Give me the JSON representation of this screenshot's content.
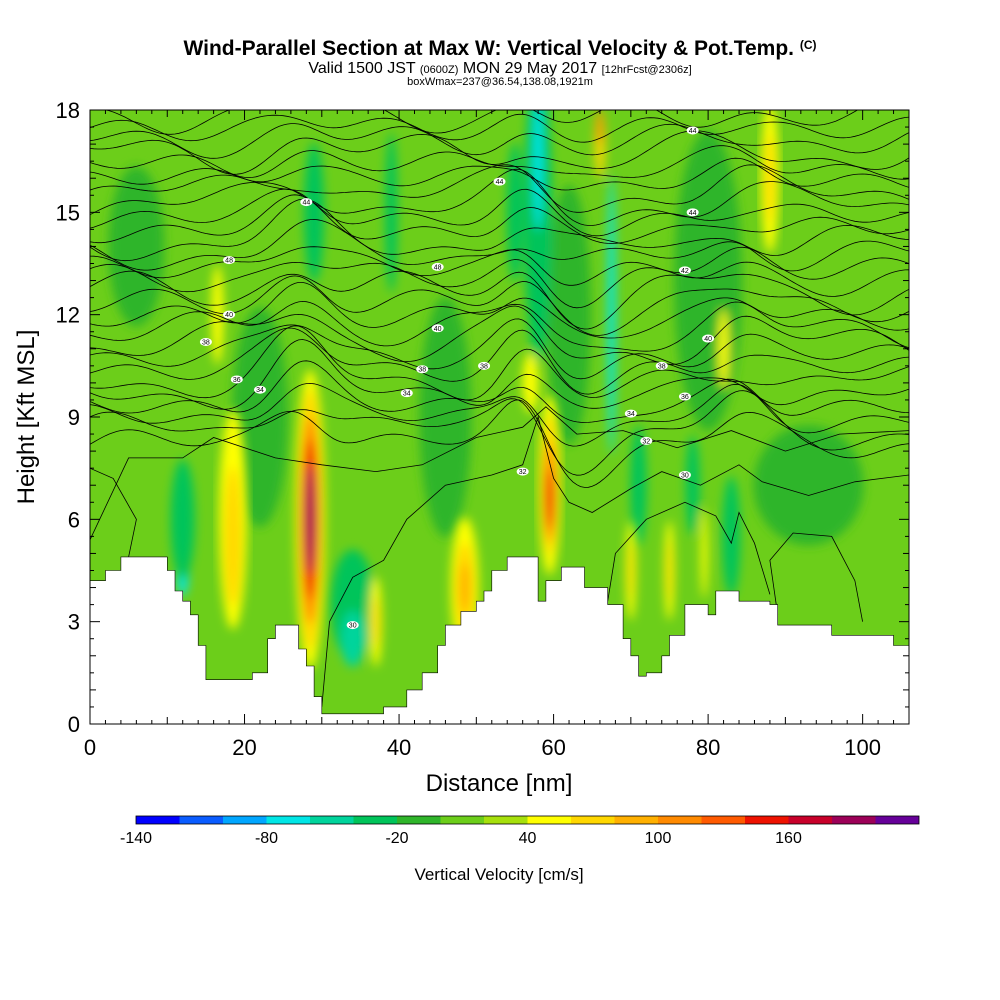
{
  "header": {
    "title_main": "Wind-Parallel Section at Max W: Vertical Velocity & Pot.Temp.",
    "title_mark": "(C)",
    "valid_a": "Valid 1500 JST",
    "valid_utc": "(0600Z)",
    "valid_b": "MON 29 May 2017",
    "forecast": "[12hrFcst@2306z]",
    "box_info": "boxWmax=237@36.54,138.08,1921m"
  },
  "chart_data": {
    "type": "heatmap",
    "xlabel": "Distance [nm]",
    "ylabel": "Height [Kft MSL]",
    "xlim": [
      0,
      106
    ],
    "ylim": [
      0,
      18
    ],
    "x_ticks": [
      0,
      20,
      40,
      60,
      80,
      100
    ],
    "y_ticks": [
      0,
      3,
      6,
      9,
      12,
      15,
      18
    ],
    "colorbar": {
      "label": "Vertical Velocity [cm/s]",
      "levels": [
        -140,
        -120,
        -100,
        -80,
        -60,
        -40,
        -20,
        0,
        20,
        40,
        60,
        80,
        100,
        120,
        140,
        160,
        180,
        200
      ],
      "tick_labels": [
        -140,
        -80,
        -20,
        40,
        100,
        160
      ],
      "colors": [
        "#0000ff",
        "#0a5cff",
        "#00a6ff",
        "#00e6e6",
        "#00d49c",
        "#00c45a",
        "#2fb52a",
        "#6cce1a",
        "#a6e00c",
        "#ffff00",
        "#ffd700",
        "#ffb000",
        "#ff8a00",
        "#ff5a00",
        "#ee1200",
        "#c8002a",
        "#9c0058",
        "#660099"
      ]
    },
    "terrain_kft": [
      [
        0,
        4.2
      ],
      [
        2,
        4.2
      ],
      [
        2,
        4.5
      ],
      [
        4,
        4.5
      ],
      [
        4,
        4.9
      ],
      [
        10,
        4.9
      ],
      [
        10,
        4.5
      ],
      [
        11,
        4.5
      ],
      [
        11,
        3.9
      ],
      [
        12,
        3.9
      ],
      [
        12,
        3.6
      ],
      [
        13,
        3.6
      ],
      [
        13,
        3.2
      ],
      [
        14,
        3.2
      ],
      [
        14,
        2.3
      ],
      [
        15,
        2.3
      ],
      [
        15,
        1.3
      ],
      [
        21,
        1.3
      ],
      [
        21,
        1.5
      ],
      [
        23,
        1.5
      ],
      [
        23,
        2.5
      ],
      [
        24,
        2.5
      ],
      [
        24,
        2.9
      ],
      [
        27,
        2.9
      ],
      [
        27,
        2.2
      ],
      [
        28,
        2.2
      ],
      [
        28,
        1.7
      ],
      [
        29,
        1.7
      ],
      [
        29,
        0.8
      ],
      [
        30,
        0.8
      ],
      [
        30,
        0.3
      ],
      [
        38,
        0.3
      ],
      [
        38,
        0.5
      ],
      [
        41,
        0.5
      ],
      [
        41,
        1.0
      ],
      [
        43,
        1.0
      ],
      [
        43,
        1.5
      ],
      [
        45,
        1.5
      ],
      [
        45,
        2.3
      ],
      [
        46,
        2.3
      ],
      [
        46,
        2.9
      ],
      [
        48,
        2.9
      ],
      [
        48,
        3.3
      ],
      [
        50,
        3.3
      ],
      [
        50,
        3.6
      ],
      [
        51,
        3.6
      ],
      [
        51,
        3.9
      ],
      [
        52,
        3.9
      ],
      [
        52,
        4.5
      ],
      [
        54,
        4.5
      ],
      [
        54,
        4.9
      ],
      [
        58,
        4.9
      ],
      [
        58,
        3.6
      ],
      [
        59,
        3.6
      ],
      [
        59,
        4.2
      ],
      [
        61,
        4.2
      ],
      [
        61,
        4.6
      ],
      [
        64,
        4.6
      ],
      [
        64,
        4.0
      ],
      [
        67,
        4.0
      ],
      [
        67,
        3.5
      ],
      [
        69,
        3.5
      ],
      [
        69,
        2.5
      ],
      [
        70,
        2.5
      ],
      [
        70,
        2.0
      ],
      [
        71,
        2.0
      ],
      [
        71,
        1.4
      ],
      [
        72,
        1.4
      ],
      [
        72,
        1.5
      ],
      [
        74,
        1.5
      ],
      [
        74,
        2.0
      ],
      [
        75,
        2.0
      ],
      [
        75,
        2.6
      ],
      [
        77,
        2.6
      ],
      [
        77,
        3.5
      ],
      [
        80,
        3.5
      ],
      [
        80,
        3.2
      ],
      [
        81,
        3.2
      ],
      [
        81,
        3.9
      ],
      [
        84,
        3.9
      ],
      [
        84,
        3.6
      ],
      [
        88,
        3.6
      ],
      [
        88,
        3.5
      ],
      [
        89,
        3.5
      ],
      [
        89,
        2.9
      ],
      [
        96,
        2.9
      ],
      [
        96,
        2.6
      ],
      [
        104,
        2.6
      ],
      [
        104,
        2.3
      ],
      [
        106,
        2.3
      ]
    ],
    "theta_labels": [
      {
        "x": 28,
        "y": 15.3,
        "v": "44"
      },
      {
        "x": 53,
        "y": 15.9,
        "v": "44"
      },
      {
        "x": 78,
        "y": 17.4,
        "v": "44"
      },
      {
        "x": 78,
        "y": 15.0,
        "v": "44"
      },
      {
        "x": 18,
        "y": 13.6,
        "v": "48"
      },
      {
        "x": 45,
        "y": 13.4,
        "v": "48"
      },
      {
        "x": 77,
        "y": 13.3,
        "v": "42"
      },
      {
        "x": 18,
        "y": 12.0,
        "v": "40"
      },
      {
        "x": 45,
        "y": 11.6,
        "v": "40"
      },
      {
        "x": 80,
        "y": 11.3,
        "v": "40"
      },
      {
        "x": 15,
        "y": 11.2,
        "v": "38"
      },
      {
        "x": 43,
        "y": 10.4,
        "v": "38"
      },
      {
        "x": 51,
        "y": 10.5,
        "v": "38"
      },
      {
        "x": 74,
        "y": 10.5,
        "v": "38"
      },
      {
        "x": 19,
        "y": 10.1,
        "v": "36"
      },
      {
        "x": 22,
        "y": 9.8,
        "v": "34"
      },
      {
        "x": 41,
        "y": 9.7,
        "v": "34"
      },
      {
        "x": 77,
        "y": 9.6,
        "v": "36"
      },
      {
        "x": 70,
        "y": 9.1,
        "v": "34"
      },
      {
        "x": 72,
        "y": 8.3,
        "v": "32"
      },
      {
        "x": 56,
        "y": 7.4,
        "v": "32"
      },
      {
        "x": 77,
        "y": 7.3,
        "v": "30"
      },
      {
        "x": 34,
        "y": 2.9,
        "v": "30"
      }
    ]
  }
}
